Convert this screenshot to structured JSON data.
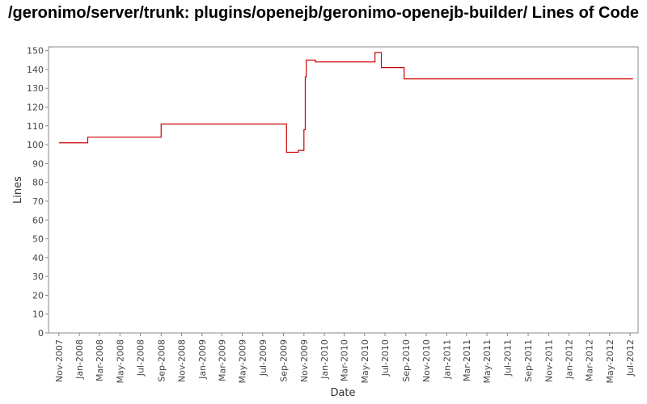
{
  "chart_data": {
    "type": "line",
    "title": "/geronimo/server/trunk: plugins/openejb/geronimo-openejb-builder/ Lines of Code",
    "xlabel": "Date",
    "ylabel": "Lines",
    "ylim": [
      0,
      152
    ],
    "xlim": [
      "2007-10-01",
      "2012-07-25"
    ],
    "yticks": [
      0,
      10,
      20,
      30,
      40,
      50,
      60,
      70,
      80,
      90,
      100,
      110,
      120,
      130,
      140,
      150
    ],
    "xticks": [
      {
        "label": "Nov-2007",
        "date": "2007-11-01"
      },
      {
        "label": "Jan-2008",
        "date": "2008-01-01"
      },
      {
        "label": "Mar-2008",
        "date": "2008-03-01"
      },
      {
        "label": "May-2008",
        "date": "2008-05-01"
      },
      {
        "label": "Jul-2008",
        "date": "2008-07-01"
      },
      {
        "label": "Sep-2008",
        "date": "2008-09-01"
      },
      {
        "label": "Nov-2008",
        "date": "2008-11-01"
      },
      {
        "label": "Jan-2009",
        "date": "2009-01-01"
      },
      {
        "label": "Mar-2009",
        "date": "2009-03-01"
      },
      {
        "label": "May-2009",
        "date": "2009-05-01"
      },
      {
        "label": "Jul-2009",
        "date": "2009-07-01"
      },
      {
        "label": "Sep-2009",
        "date": "2009-09-01"
      },
      {
        "label": "Nov-2009",
        "date": "2009-11-01"
      },
      {
        "label": "Jan-2010",
        "date": "2010-01-01"
      },
      {
        "label": "Mar-2010",
        "date": "2010-03-01"
      },
      {
        "label": "May-2010",
        "date": "2010-05-01"
      },
      {
        "label": "Jul-2010",
        "date": "2010-07-01"
      },
      {
        "label": "Sep-2010",
        "date": "2010-09-01"
      },
      {
        "label": "Nov-2010",
        "date": "2010-11-01"
      },
      {
        "label": "Jan-2011",
        "date": "2011-01-01"
      },
      {
        "label": "Mar-2011",
        "date": "2011-03-01"
      },
      {
        "label": "May-2011",
        "date": "2011-05-01"
      },
      {
        "label": "Jul-2011",
        "date": "2011-07-01"
      },
      {
        "label": "Sep-2011",
        "date": "2011-09-01"
      },
      {
        "label": "Nov-2011",
        "date": "2011-11-01"
      },
      {
        "label": "Jan-2012",
        "date": "2012-01-01"
      },
      {
        "label": "Mar-2012",
        "date": "2012-03-01"
      },
      {
        "label": "May-2012",
        "date": "2012-05-01"
      },
      {
        "label": "Jul-2012",
        "date": "2012-07-01"
      }
    ],
    "grid": false,
    "series": [
      {
        "color": "#cc0000",
        "step": true,
        "points": [
          {
            "x": "2007-11-01",
            "y": 101
          },
          {
            "x": "2008-01-26",
            "y": 104
          },
          {
            "x": "2008-09-01",
            "y": 111
          },
          {
            "x": "2009-09-10",
            "y": 96
          },
          {
            "x": "2009-10-15",
            "y": 97
          },
          {
            "x": "2009-11-01",
            "y": 108
          },
          {
            "x": "2009-11-05",
            "y": 136
          },
          {
            "x": "2009-11-08",
            "y": 145
          },
          {
            "x": "2009-12-05",
            "y": 144
          },
          {
            "x": "2010-06-01",
            "y": 149
          },
          {
            "x": "2010-06-20",
            "y": 141
          },
          {
            "x": "2010-08-27",
            "y": 135
          },
          {
            "x": "2012-07-10",
            "y": 135
          }
        ]
      }
    ]
  }
}
